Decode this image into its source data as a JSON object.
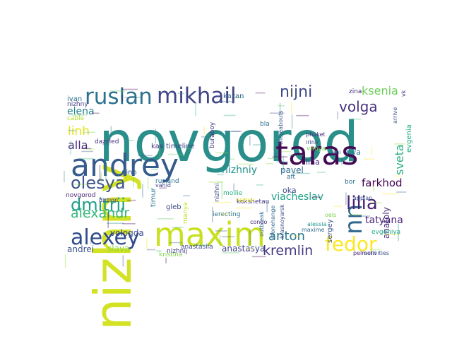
{
  "word_cloud": {
    "words": [
      {
        "text": "novgorod",
        "color": "#2a8f8a"
      },
      {
        "text": "nizhny",
        "color": "#d3e222"
      },
      {
        "text": "taras",
        "color": "#440a54"
      },
      {
        "text": "andrey",
        "color": "#365c8d"
      },
      {
        "text": "maxim",
        "color": "#c8e020"
      },
      {
        "text": "alexey",
        "color": "#2f4b8a"
      },
      {
        "text": "mikhail",
        "color": "#414487"
      },
      {
        "text": "ruslan",
        "color": "#2c728e"
      },
      {
        "text": "olesya",
        "color": "#3b528b"
      },
      {
        "text": "nn",
        "color": "#31688e"
      },
      {
        "text": "fedor",
        "color": "#fde725"
      },
      {
        "text": "nijni",
        "color": "#3e4a89"
      },
      {
        "text": "dmitrii",
        "color": "#1f9e89"
      },
      {
        "text": "alexandr",
        "color": "#35b779"
      },
      {
        "text": "lilia",
        "color": "#482173"
      },
      {
        "text": "volga",
        "color": "#46327e"
      },
      {
        "text": "anton",
        "color": "#2a788e"
      },
      {
        "text": "kremlin",
        "color": "#443983"
      },
      {
        "text": "ksenia",
        "color": "#6ece58"
      },
      {
        "text": "linh",
        "color": "#e7e419"
      },
      {
        "text": "alla",
        "color": "#472d7b"
      },
      {
        "text": "sveta",
        "color": "#26ad81"
      },
      {
        "text": "farkhod",
        "color": "#440154"
      },
      {
        "text": "tatyana",
        "color": "#482576"
      },
      {
        "text": "elena",
        "color": "#25848e"
      },
      {
        "text": "nizhniy",
        "color": "#21918c"
      },
      {
        "text": "viacheslav",
        "color": "#1fa187"
      },
      {
        "text": "vologda",
        "color": "#3d4d8a"
      },
      {
        "text": "slava",
        "color": "#8fd744"
      },
      {
        "text": "anastasya",
        "color": "#414487"
      },
      {
        "text": "andrei",
        "color": "#3b528b"
      },
      {
        "text": "pavel",
        "color": "#31688e"
      },
      {
        "text": "lina",
        "color": "#481f70"
      },
      {
        "text": "riva",
        "color": "#2a788e"
      },
      {
        "text": "oka",
        "color": "#3f4889"
      },
      {
        "text": "ivan",
        "color": "#2d708e"
      },
      {
        "text": "nizhny",
        "color": "#433e85"
      },
      {
        "text": "cable",
        "color": "#b5de2b"
      },
      {
        "text": "kas",
        "color": "#46337e"
      },
      {
        "text": "timeline",
        "color": "#3e4989"
      },
      {
        "text": "nino",
        "color": "#34618d"
      },
      {
        "text": "vanya",
        "color": "#7ad151"
      },
      {
        "text": "irina",
        "color": "#3f4889"
      },
      {
        "text": "phuket",
        "color": "#482878"
      },
      {
        "text": "zina",
        "color": "#472a7a"
      },
      {
        "text": "kazan",
        "color": "#355f8d"
      },
      {
        "text": "bla",
        "color": "#2c738e"
      },
      {
        "text": "aft",
        "color": "#306a8e"
      },
      {
        "text": "bor",
        "color": "#2e6f8e"
      },
      {
        "text": "anatoly",
        "color": "#482878"
      },
      {
        "text": "evgeniya",
        "color": "#22a785"
      },
      {
        "text": "evgenia",
        "color": "#25ac82"
      },
      {
        "text": "kokshetau",
        "color": "#443983"
      },
      {
        "text": "nizhni",
        "color": "#3e4a89"
      },
      {
        "text": "timur",
        "color": "#2b748e"
      },
      {
        "text": "gleb",
        "color": "#3f4788"
      },
      {
        "text": "nizhnij",
        "color": "#433e85"
      },
      {
        "text": "kristina",
        "color": "#84d44b"
      },
      {
        "text": "sergey",
        "color": "#3b528b"
      },
      {
        "text": "maxime",
        "color": "#30698e"
      },
      {
        "text": "alessia",
        "color": "#1f968b"
      },
      {
        "text": "krasnoyarsk",
        "color": "#3c4f8a"
      },
      {
        "text": "stonehange",
        "color": "#2e6e8e"
      },
      {
        "text": "anastasiia",
        "color": "#3f4788"
      },
      {
        "text": "condo",
        "color": "#472c7a"
      },
      {
        "text": "mollie",
        "color": "#28ae80"
      },
      {
        "text": "buraboy",
        "color": "#46307e"
      },
      {
        "text": "rusland",
        "color": "#2e6e8e"
      },
      {
        "text": "dazzled",
        "color": "#46307e"
      },
      {
        "text": "appian",
        "color": "#3a548c"
      },
      {
        "text": "outbreak",
        "color": "#2f6b8e"
      },
      {
        "text": "thereabouts",
        "color": "#38598c"
      },
      {
        "text": "nizhnii",
        "color": "#e5e419"
      },
      {
        "text": "manya",
        "color": "#bddf26"
      },
      {
        "text": "oels",
        "color": "#7fd34e"
      },
      {
        "text": "novgorod",
        "color": "#482475"
      },
      {
        "text": "diction",
        "color": "#453581"
      },
      {
        "text": "ierecting",
        "color": "#2c728e"
      },
      {
        "text": "pelmeni",
        "color": "#482677"
      },
      {
        "text": "activities",
        "color": "#3b528b"
      },
      {
        "text": "vk",
        "color": "#472e7c"
      },
      {
        "text": "arrive",
        "color": "#3a548c"
      },
      {
        "text": "jani",
        "color": "#31688e"
      },
      {
        "text": "vahid",
        "color": "#414487"
      }
    ]
  }
}
